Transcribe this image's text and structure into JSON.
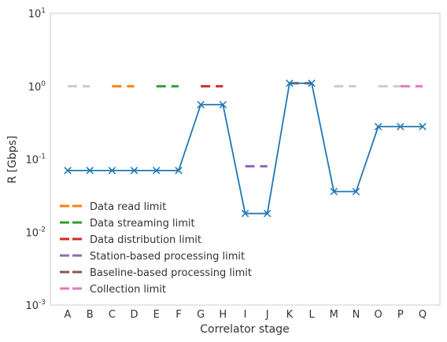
{
  "chart_data": {
    "type": "line",
    "xlabel": "Correlator stage",
    "ylabel": "R [Gbps]",
    "yscale": "log",
    "ylim": [
      0.001,
      10
    ],
    "yticks": [
      {
        "base": "10",
        "exp": "-3"
      },
      {
        "base": "10",
        "exp": "-2"
      },
      {
        "base": "10",
        "exp": "-1"
      },
      {
        "base": "10",
        "exp": "0"
      },
      {
        "base": "10",
        "exp": "1"
      }
    ],
    "grid": false,
    "legend_position": "lower-left",
    "categories": [
      "A",
      "B",
      "C",
      "D",
      "E",
      "F",
      "G",
      "H",
      "I",
      "J",
      "K",
      "L",
      "M",
      "N",
      "O",
      "P",
      "Q"
    ],
    "series": [
      {
        "color": "#1f77b4",
        "marker": "x",
        "values": [
          0.07,
          0.07,
          0.07,
          0.07,
          0.07,
          0.07,
          0.56,
          0.56,
          0.018,
          0.018,
          1.1,
          1.1,
          0.036,
          0.036,
          0.28,
          0.28,
          0.28
        ]
      }
    ],
    "limits": [
      {
        "label": "",
        "color": "#cccccc",
        "x_from": "A",
        "x_to": "B",
        "value": 1.0
      },
      {
        "label": "Data read limit",
        "color": "#ff7f0e",
        "x_from": "C",
        "x_to": "D",
        "value": 1.0
      },
      {
        "label": "Data streaming limit",
        "color": "#2ca02c",
        "x_from": "E",
        "x_to": "F",
        "value": 1.0
      },
      {
        "label": "Data distribution limit",
        "color": "#d62728",
        "x_from": "G",
        "x_to": "H",
        "value": 1.0
      },
      {
        "label": "Station-based processing limit",
        "color": "#9467bd",
        "x_from": "I",
        "x_to": "J",
        "value": 0.08
      },
      {
        "label": "Baseline-based processing limit",
        "color": "#8c564b",
        "x_from": "K",
        "x_to": "L",
        "value": 1.1
      },
      {
        "label": "",
        "color": "#cccccc",
        "x_from": "M",
        "x_to": "N",
        "value": 1.0
      },
      {
        "label": "",
        "color": "#cccccc",
        "x_from": "O",
        "x_to": "P",
        "value": 1.0
      },
      {
        "label": "Collection limit",
        "color": "#e377c2",
        "x_from": "P",
        "x_to": "Q",
        "value": 1.0
      }
    ]
  }
}
